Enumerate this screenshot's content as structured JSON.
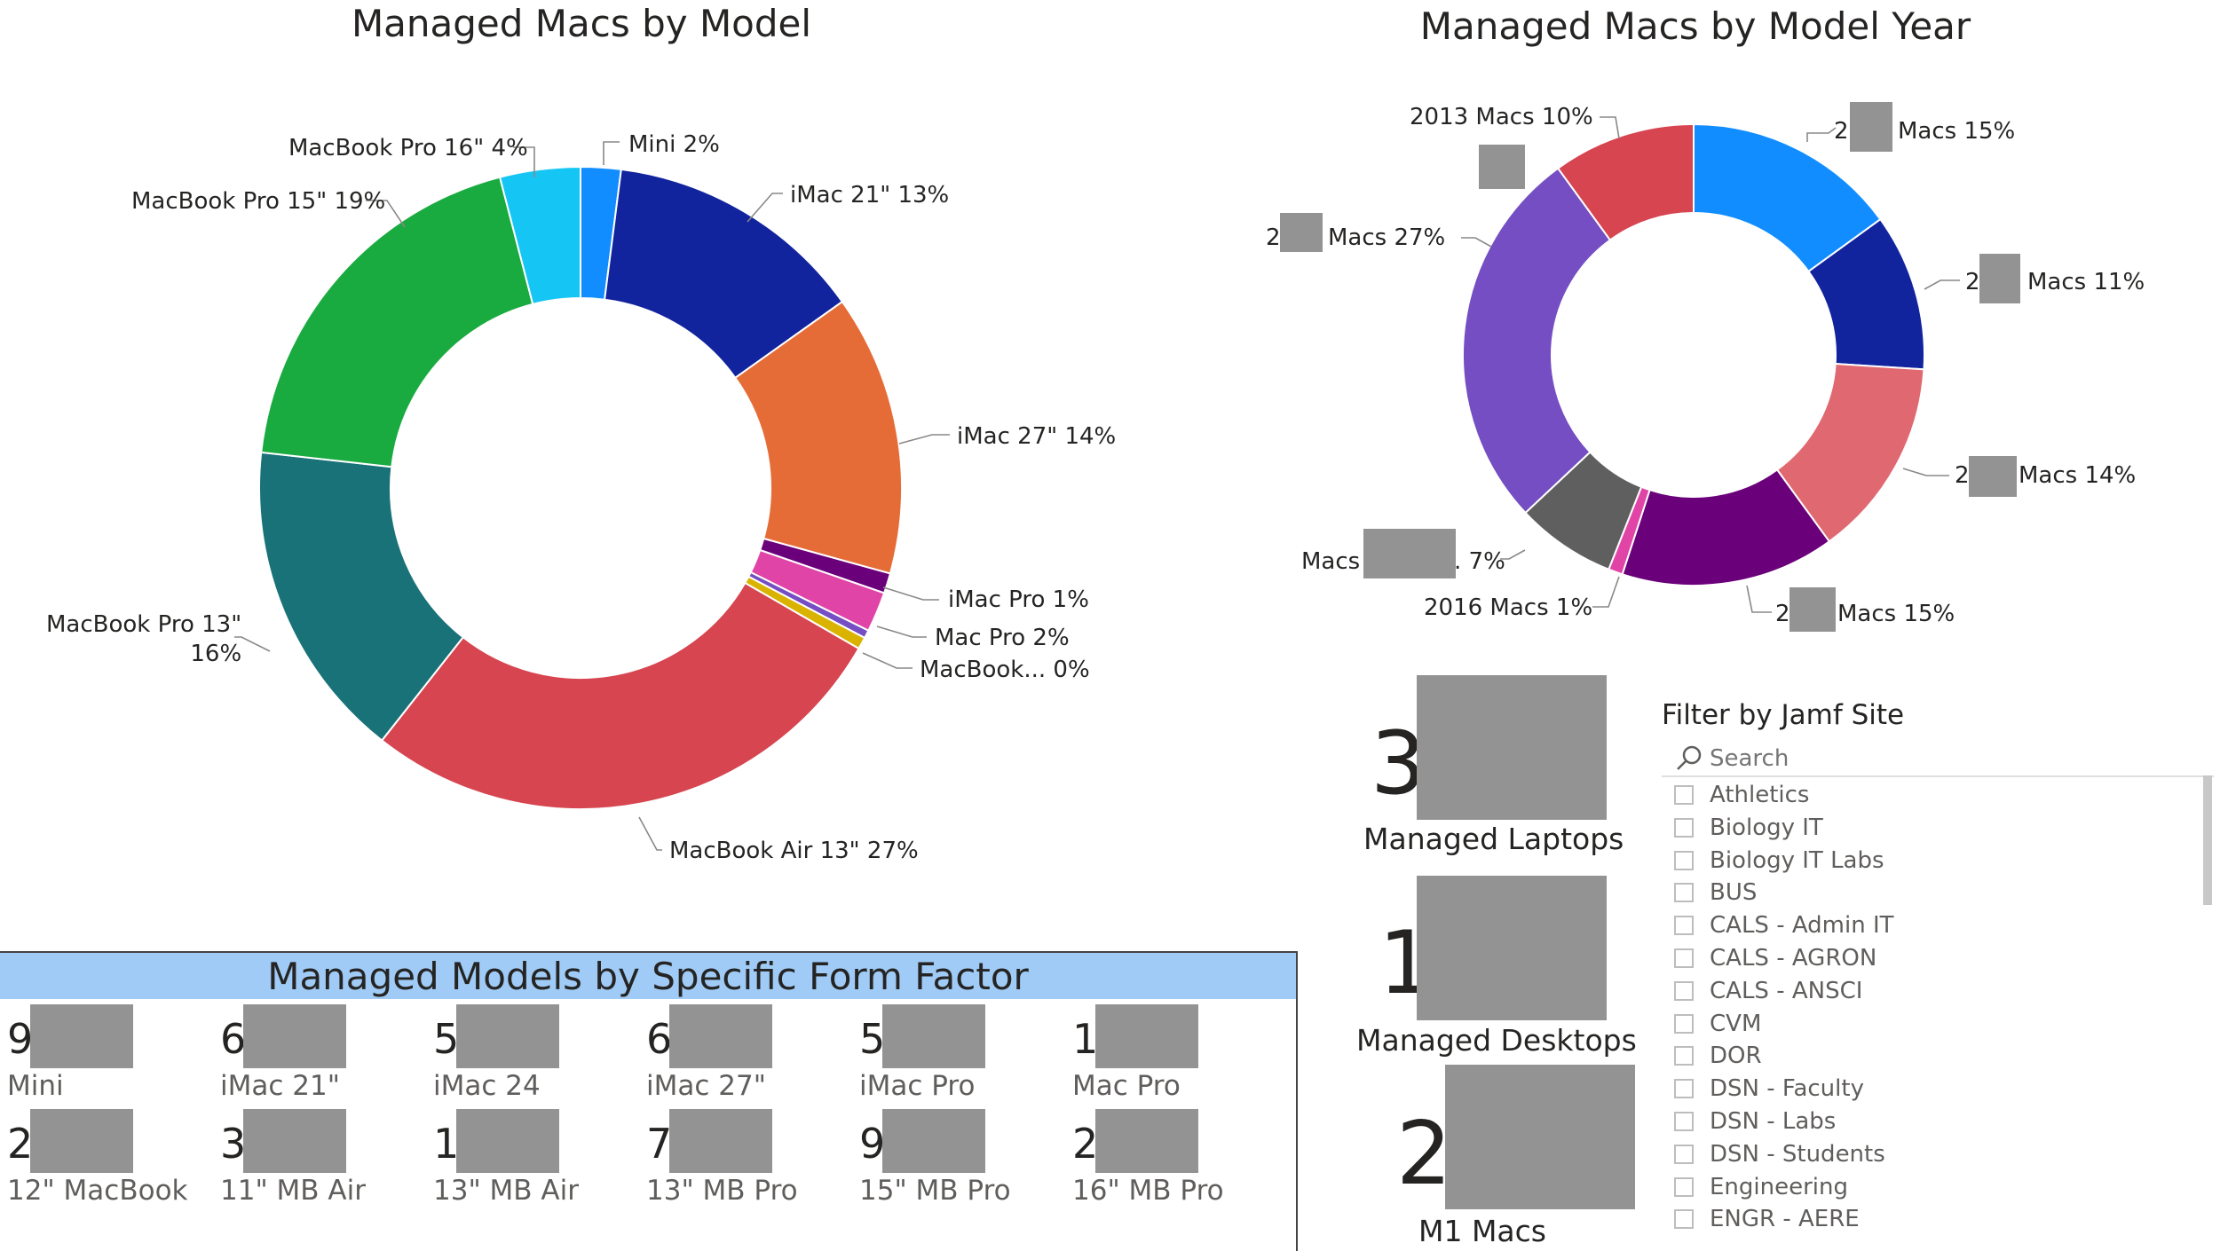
{
  "chart_data": [
    {
      "type": "pie",
      "title": "Managed Macs by Model",
      "slices": [
        {
          "label": "Mini 2%",
          "value": 2,
          "color": "#118DFF"
        },
        {
          "label": "iMac 21\" 13%",
          "value": 13,
          "color": "#12239E"
        },
        {
          "label": "iMac 27\" 14%",
          "value": 14,
          "color": "#E66C37"
        },
        {
          "label": "iMac Pro 1%",
          "value": 1,
          "color": "#6B007B"
        },
        {
          "label": "Mac Pro 2%",
          "value": 2,
          "color": "#E044A7"
        },
        {
          "label": "MacBook... 0%",
          "value": 0.4,
          "color": "#744EC2"
        },
        {
          "label": "",
          "value": 0.6,
          "color": "#D9B300"
        },
        {
          "label": "MacBook Air 13\" 27%",
          "value": 27,
          "color": "#D64550"
        },
        {
          "label": "MacBook Pro 13\" 16%",
          "value": 16,
          "color": "#197278"
        },
        {
          "label": "MacBook Pro 15\" 19%",
          "value": 19,
          "color": "#1AAB40"
        },
        {
          "label": "MacBook Pro 16\" 4%",
          "value": 4,
          "color": "#15C6F4"
        }
      ]
    },
    {
      "type": "pie",
      "title": "Managed Macs by Model Year",
      "slices": [
        {
          "label": "2 Macs 15%",
          "value": 15,
          "color": "#118DFF"
        },
        {
          "label": "2 Macs 11%",
          "value": 11,
          "color": "#12239E"
        },
        {
          "label": "2 Macs 14%",
          "value": 14,
          "color": "#E06971"
        },
        {
          "label": "2 Macs 15%",
          "value": 15,
          "color": "#6B007B"
        },
        {
          "label": "2016 Macs 1%",
          "value": 1,
          "color": "#E044A7"
        },
        {
          "label": "Macs . 7%",
          "value": 7,
          "color": "#5F5F5F"
        },
        {
          "label": "2 Macs 27%",
          "value": 27,
          "color": "#744EC2"
        },
        {
          "label": "2013 Macs 10%",
          "value": 10,
          "color": "#D64550"
        }
      ]
    }
  ],
  "model_year_labels": {
    "macs15_top_prefix": "2",
    "macs15_top": "Macs 15%",
    "macs11_prefix": "2",
    "macs11": "Macs 11%",
    "macs14_prefix": "2",
    "macs14": "Macs 14%",
    "macs15_bottom_prefix": "2",
    "macs15_bottom": "Macs 15%",
    "m2016": "2016 Macs 1%",
    "macs7_a": "Macs",
    "macs7_b": ". 7%",
    "macs27_prefix": "2",
    "macs27": "Macs 27%",
    "m2013": "2013 Macs 10%"
  },
  "cards": [
    {
      "digit": "3",
      "label": "Managed Laptops"
    },
    {
      "digit": "1",
      "label": "Managed Desktops"
    },
    {
      "digit": "2",
      "label": "M1 Macs"
    }
  ],
  "form_factor": {
    "title": "Managed Models by Specific Form Factor",
    "header_color": "#9FCBF6",
    "items": [
      {
        "digit": "9",
        "label": "Mini"
      },
      {
        "digit": "6",
        "label": "iMac 21\""
      },
      {
        "digit": "5",
        "label": "iMac 24"
      },
      {
        "digit": "6",
        "label": "iMac 27\""
      },
      {
        "digit": "5",
        "label": "iMac Pro"
      },
      {
        "digit": "1",
        "label": "Mac Pro"
      },
      {
        "digit": "2",
        "label": "12\" MacBook"
      },
      {
        "digit": "3",
        "label": "11\" MB Air"
      },
      {
        "digit": "1",
        "label": "13\" MB Air"
      },
      {
        "digit": "7",
        "label": "13\" MB Pro"
      },
      {
        "digit": "9",
        "label": "15\" MB Pro"
      },
      {
        "digit": "2",
        "label": "16\" MB Pro"
      }
    ]
  },
  "slicer": {
    "title": "Filter by Jamf Site",
    "search_placeholder": "Search",
    "search_icon": "search-icon",
    "items": [
      "Athletics",
      "Biology IT",
      "Biology IT Labs",
      "BUS",
      "CALS - Admin IT",
      "CALS - AGRON",
      "CALS - ANSCI",
      "CVM",
      "DOR",
      "DSN - Faculty",
      "DSN - Labs",
      "DSN - Students",
      "Engineering",
      "ENGR - AERE"
    ]
  }
}
